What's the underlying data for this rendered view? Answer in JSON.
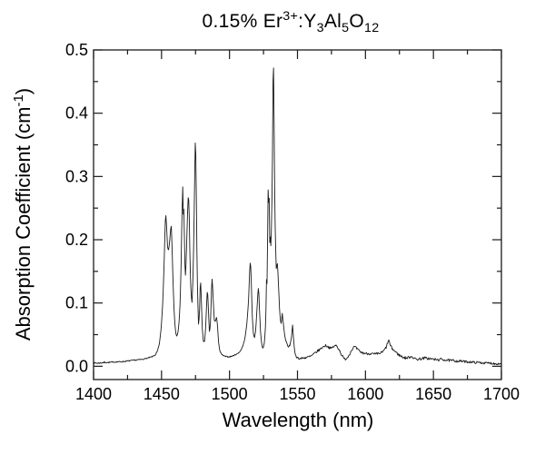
{
  "chart_data": {
    "type": "line",
    "title_plain": "0.15% Er3+:Y3Al5O12",
    "title_parts": [
      {
        "t": "0.15% Er",
        "style": "normal"
      },
      {
        "t": "3+",
        "style": "sup"
      },
      {
        "t": ":Y",
        "style": "normal"
      },
      {
        "t": "3",
        "style": "sub"
      },
      {
        "t": "Al",
        "style": "normal"
      },
      {
        "t": "5",
        "style": "sub"
      },
      {
        "t": "O",
        "style": "normal"
      },
      {
        "t": "12",
        "style": "sub"
      }
    ],
    "xlabel": "Wavelength (nm)",
    "ylabel_plain": "Absorption Coefficient (cm-1)",
    "ylabel_parts": [
      {
        "t": "Absorption Coefficient (cm",
        "style": "normal"
      },
      {
        "t": "-1",
        "style": "sup"
      },
      {
        "t": ")",
        "style": "normal"
      }
    ],
    "xlim": [
      1400,
      1700
    ],
    "ylim": [
      0.0,
      0.5
    ],
    "x_ticks": [
      1400,
      1450,
      1500,
      1550,
      1600,
      1650,
      1700
    ],
    "x_tick_labels": [
      "1400",
      "1450",
      "1500",
      "1550",
      "1600",
      "1650",
      "1700"
    ],
    "x_minor_ticks": [
      1425,
      1475,
      1525,
      1575,
      1625,
      1675
    ],
    "y_ticks": [
      0.0,
      0.1,
      0.2,
      0.3,
      0.4,
      0.5
    ],
    "y_tick_labels": [
      "0.0",
      "0.1",
      "0.2",
      "0.3",
      "0.4",
      "0.5"
    ],
    "y_minor_ticks": [
      0.05,
      0.15,
      0.25,
      0.35,
      0.45
    ],
    "grid": false,
    "legend": null,
    "line_color": "#1a1a1a",
    "frame_color": "#1a1a1a",
    "text_color": "#000000",
    "background_color": "#ffffff",
    "series": [
      {
        "name": "absorption",
        "points": [
          [
            1400,
            0.005
          ],
          [
            1404,
            0.005
          ],
          [
            1408,
            0.006
          ],
          [
            1412,
            0.006
          ],
          [
            1416,
            0.007
          ],
          [
            1420,
            0.007
          ],
          [
            1424,
            0.008
          ],
          [
            1428,
            0.009
          ],
          [
            1432,
            0.01
          ],
          [
            1436,
            0.011
          ],
          [
            1440,
            0.013
          ],
          [
            1443,
            0.015
          ],
          [
            1445.5,
            0.018
          ],
          [
            1447,
            0.024
          ],
          [
            1448.5,
            0.036
          ],
          [
            1449.8,
            0.062
          ],
          [
            1450.9,
            0.1
          ],
          [
            1451.8,
            0.155
          ],
          [
            1452.5,
            0.21
          ],
          [
            1453.0,
            0.245
          ],
          [
            1453.7,
            0.222
          ],
          [
            1454.4,
            0.19
          ],
          [
            1455.1,
            0.183
          ],
          [
            1455.9,
            0.196
          ],
          [
            1456.7,
            0.216
          ],
          [
            1457.2,
            0.222
          ],
          [
            1457.8,
            0.185
          ],
          [
            1458.5,
            0.13
          ],
          [
            1459.3,
            0.085
          ],
          [
            1460.2,
            0.056
          ],
          [
            1461.0,
            0.047
          ],
          [
            1461.8,
            0.05
          ],
          [
            1462.6,
            0.062
          ],
          [
            1463.5,
            0.09
          ],
          [
            1464.3,
            0.15
          ],
          [
            1465.0,
            0.235
          ],
          [
            1465.6,
            0.283
          ],
          [
            1466.1,
            0.23
          ],
          [
            1466.5,
            0.255
          ],
          [
            1467.0,
            0.175
          ],
          [
            1467.5,
            0.14
          ],
          [
            1468.1,
            0.165
          ],
          [
            1468.7,
            0.21
          ],
          [
            1469.2,
            0.245
          ],
          [
            1469.8,
            0.277
          ],
          [
            1470.4,
            0.235
          ],
          [
            1471.0,
            0.16
          ],
          [
            1471.7,
            0.115
          ],
          [
            1472.4,
            0.1
          ],
          [
            1473.1,
            0.135
          ],
          [
            1473.8,
            0.21
          ],
          [
            1474.4,
            0.3
          ],
          [
            1474.9,
            0.366
          ],
          [
            1475.4,
            0.315
          ],
          [
            1475.9,
            0.2
          ],
          [
            1476.5,
            0.115
          ],
          [
            1477.2,
            0.066
          ],
          [
            1477.9,
            0.082
          ],
          [
            1478.6,
            0.142
          ],
          [
            1479.2,
            0.11
          ],
          [
            1479.9,
            0.062
          ],
          [
            1480.8,
            0.04
          ],
          [
            1481.7,
            0.038
          ],
          [
            1482.5,
            0.062
          ],
          [
            1483.2,
            0.1
          ],
          [
            1483.8,
            0.124
          ],
          [
            1484.5,
            0.088
          ],
          [
            1485.3,
            0.05
          ],
          [
            1486.1,
            0.072
          ],
          [
            1486.9,
            0.13
          ],
          [
            1487.3,
            0.14
          ],
          [
            1488.0,
            0.105
          ],
          [
            1488.9,
            0.07
          ],
          [
            1489.8,
            0.072
          ],
          [
            1490.5,
            0.078
          ],
          [
            1491.2,
            0.062
          ],
          [
            1492.0,
            0.038
          ],
          [
            1492.9,
            0.024
          ],
          [
            1494,
            0.019
          ],
          [
            1496,
            0.016
          ],
          [
            1498,
            0.015
          ],
          [
            1500,
            0.015
          ],
          [
            1502,
            0.016
          ],
          [
            1504,
            0.018
          ],
          [
            1506,
            0.02
          ],
          [
            1508,
            0.024
          ],
          [
            1510,
            0.033
          ],
          [
            1511.5,
            0.046
          ],
          [
            1512.8,
            0.068
          ],
          [
            1513.9,
            0.1
          ],
          [
            1514.8,
            0.148
          ],
          [
            1515.4,
            0.17
          ],
          [
            1516.0,
            0.135
          ],
          [
            1516.7,
            0.082
          ],
          [
            1517.5,
            0.052
          ],
          [
            1518.4,
            0.045
          ],
          [
            1519.3,
            0.058
          ],
          [
            1520.2,
            0.09
          ],
          [
            1520.9,
            0.118
          ],
          [
            1521.4,
            0.125
          ],
          [
            1522.0,
            0.092
          ],
          [
            1522.8,
            0.055
          ],
          [
            1523.7,
            0.035
          ],
          [
            1524.6,
            0.027
          ],
          [
            1525.5,
            0.035
          ],
          [
            1526.3,
            0.055
          ],
          [
            1526.9,
            0.095
          ],
          [
            1527.3,
            0.15
          ],
          [
            1527.7,
            0.125
          ],
          [
            1528.0,
            0.2
          ],
          [
            1528.3,
            0.26
          ],
          [
            1528.6,
            0.318
          ],
          [
            1528.9,
            0.23
          ],
          [
            1529.2,
            0.265
          ],
          [
            1529.5,
            0.19
          ],
          [
            1529.9,
            0.21
          ],
          [
            1530.3,
            0.185
          ],
          [
            1530.7,
            0.205
          ],
          [
            1531.1,
            0.245
          ],
          [
            1531.6,
            0.33
          ],
          [
            1532.0,
            0.45
          ],
          [
            1532.3,
            0.49
          ],
          [
            1532.7,
            0.415
          ],
          [
            1533.1,
            0.3
          ],
          [
            1533.7,
            0.205
          ],
          [
            1534.4,
            0.155
          ],
          [
            1535.3,
            0.163
          ],
          [
            1536.1,
            0.125
          ],
          [
            1537.0,
            0.082
          ],
          [
            1537.9,
            0.066
          ],
          [
            1538.8,
            0.083
          ],
          [
            1539.6,
            0.068
          ],
          [
            1540.6,
            0.048
          ],
          [
            1541.8,
            0.038
          ],
          [
            1543.2,
            0.03
          ],
          [
            1544.6,
            0.034
          ],
          [
            1545.7,
            0.048
          ],
          [
            1546.4,
            0.066
          ],
          [
            1547.1,
            0.042
          ],
          [
            1548.0,
            0.022
          ],
          [
            1549.2,
            0.015
          ],
          [
            1550.5,
            0.013
          ],
          [
            1552,
            0.012
          ],
          [
            1554,
            0.013
          ],
          [
            1557,
            0.014
          ],
          [
            1560,
            0.016
          ],
          [
            1563,
            0.021
          ],
          [
            1566,
            0.026
          ],
          [
            1568.5,
            0.03
          ],
          [
            1570.5,
            0.033
          ],
          [
            1572.5,
            0.031
          ],
          [
            1574.5,
            0.028
          ],
          [
            1576.5,
            0.031
          ],
          [
            1578.5,
            0.033
          ],
          [
            1580.5,
            0.027
          ],
          [
            1582.5,
            0.018
          ],
          [
            1584.5,
            0.011
          ],
          [
            1586.5,
            0.013
          ],
          [
            1588.5,
            0.02
          ],
          [
            1590.5,
            0.028
          ],
          [
            1592,
            0.031
          ],
          [
            1594,
            0.027
          ],
          [
            1596,
            0.023
          ],
          [
            1598,
            0.021
          ],
          [
            1601,
            0.02
          ],
          [
            1604,
            0.02
          ],
          [
            1607,
            0.019
          ],
          [
            1610,
            0.02
          ],
          [
            1613,
            0.023
          ],
          [
            1615.5,
            0.031
          ],
          [
            1617,
            0.042
          ],
          [
            1618.5,
            0.032
          ],
          [
            1620,
            0.027
          ],
          [
            1622,
            0.023
          ],
          [
            1624,
            0.019
          ],
          [
            1626,
            0.016
          ],
          [
            1628,
            0.014
          ],
          [
            1630,
            0.013
          ],
          [
            1632,
            0.014
          ],
          [
            1634,
            0.016
          ],
          [
            1636,
            0.012
          ],
          [
            1638,
            0.011
          ],
          [
            1641,
            0.012
          ],
          [
            1644,
            0.013
          ],
          [
            1647,
            0.012
          ],
          [
            1650,
            0.011
          ],
          [
            1653,
            0.01
          ],
          [
            1656,
            0.011
          ],
          [
            1659,
            0.01
          ],
          [
            1662,
            0.009
          ],
          [
            1665,
            0.009
          ],
          [
            1668,
            0.008
          ],
          [
            1671,
            0.008
          ],
          [
            1674,
            0.007
          ],
          [
            1677,
            0.007
          ],
          [
            1680,
            0.006
          ],
          [
            1684,
            0.006
          ],
          [
            1688,
            0.005
          ],
          [
            1692,
            0.005
          ],
          [
            1696,
            0.004
          ],
          [
            1700,
            0.004
          ]
        ]
      }
    ],
    "noise": {
      "seed": 7,
      "amplitude_profile": [
        [
          1400,
          0.0012
        ],
        [
          1447,
          0.0007
        ],
        [
          1493,
          0.001
        ],
        [
          1512,
          0.0007
        ],
        [
          1545,
          0.0012
        ],
        [
          1552,
          0.0018
        ],
        [
          1600,
          0.002
        ],
        [
          1640,
          0.0022
        ],
        [
          1700,
          0.0017
        ]
      ]
    }
  }
}
